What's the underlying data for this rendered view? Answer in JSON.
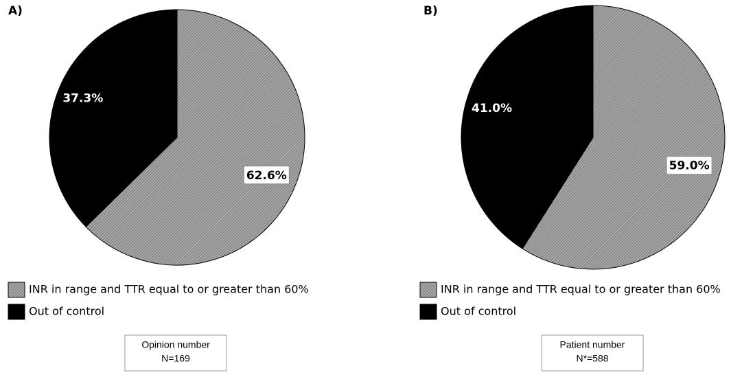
{
  "chart_data": [
    {
      "type": "pie",
      "panel_label": "A)",
      "categories": [
        "INR in range and TTR equal to or greater than 60%",
        "Out of control"
      ],
      "values": [
        62.6,
        37.3
      ],
      "value_labels": [
        "62.6%",
        "37.3%"
      ],
      "colors": [
        "#8a8a8a",
        "#000000"
      ],
      "annotations": [
        "Opinion number",
        "N=169"
      ]
    },
    {
      "type": "pie",
      "panel_label": "B)",
      "categories": [
        "INR in range and TTR equal to or greater than 60%",
        "Out of control"
      ],
      "values": [
        59.0,
        41.0
      ],
      "value_labels": [
        "59.0%",
        "41.0%"
      ],
      "colors": [
        "#8a8a8a",
        "#000000"
      ],
      "annotations": [
        "Patient number",
        "N*=588"
      ]
    }
  ]
}
